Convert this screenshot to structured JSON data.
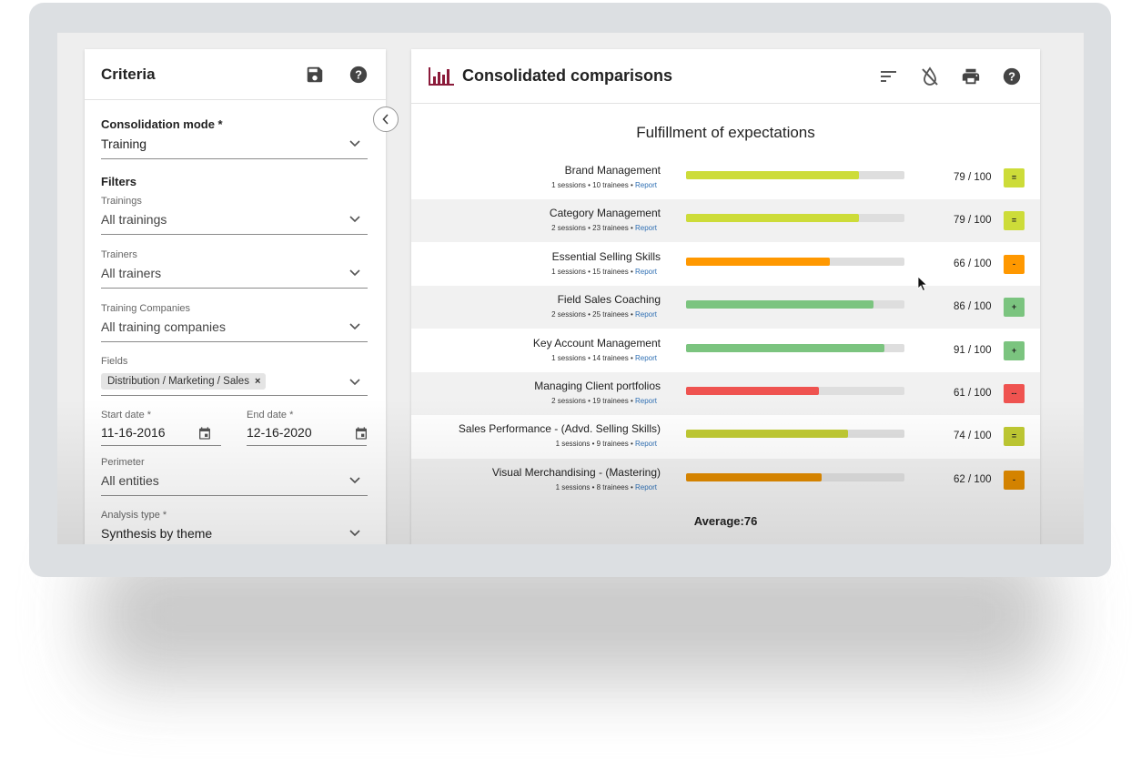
{
  "criteria": {
    "title": "Criteria",
    "save_icon": "save-icon",
    "help_icon": "help-icon",
    "consolidation_mode": {
      "label": "Consolidation mode *",
      "value": "Training"
    },
    "filters_title": "Filters",
    "trainings": {
      "label": "Trainings",
      "value": "All trainings"
    },
    "trainers": {
      "label": "Trainers",
      "value": "All trainers"
    },
    "training_companies": {
      "label": "Training Companies",
      "value": "All training companies"
    },
    "fields": {
      "label": "Fields",
      "chip": "Distribution / Marketing / Sales",
      "chip_remove": "×"
    },
    "start_date": {
      "label": "Start date *",
      "value": "11-16-2016"
    },
    "end_date": {
      "label": "End date *",
      "value": "12-16-2020"
    },
    "perimeter": {
      "label": "Perimeter",
      "value": "All entities"
    },
    "analysis_type": {
      "label": "Analysis type *",
      "value": "Synthesis by theme"
    }
  },
  "comparisons": {
    "title": "Consolidated comparisons",
    "chart_title": "Fulfillment of expectations",
    "average_label": "Average:76",
    "toolbar_icons": [
      "sort-icon",
      "no-color-icon",
      "print-icon",
      "help-icon"
    ],
    "max_score": 100,
    "rows": [
      {
        "name": "Brand Management",
        "meta": "1 sessions • 10 trainees • ",
        "report": "Report",
        "score": 79,
        "score_text": "79 / 100",
        "badge": "=",
        "color": "#cddc39"
      },
      {
        "name": "Category Management",
        "meta": "2 sessions • 23 trainees • ",
        "report": "Report",
        "score": 79,
        "score_text": "79 / 100",
        "badge": "=",
        "color": "#cddc39"
      },
      {
        "name": "Essential Selling Skills",
        "meta": "1 sessions • 15 trainees • ",
        "report": "Report",
        "score": 66,
        "score_text": "66 / 100",
        "badge": "-",
        "color": "#ff9800"
      },
      {
        "name": "Field Sales Coaching",
        "meta": "2 sessions • 25 trainees • ",
        "report": "Report",
        "score": 86,
        "score_text": "86 / 100",
        "badge": "+",
        "color": "#7bc47f"
      },
      {
        "name": "Key Account Management",
        "meta": "1 sessions • 14 trainees • ",
        "report": "Report",
        "score": 91,
        "score_text": "91 / 100",
        "badge": "+",
        "color": "#7bc47f"
      },
      {
        "name": "Managing Client portfolios",
        "meta": "2 sessions • 19 trainees • ",
        "report": "Report",
        "score": 61,
        "score_text": "61 / 100",
        "badge": "--",
        "color": "#ef5350"
      },
      {
        "name": "Sales Performance - (Advd. Selling Skills)",
        "meta": "1 sessions • 9 trainees • ",
        "report": "Report",
        "score": 74,
        "score_text": "74 / 100",
        "badge": "=",
        "color": "#c0ca33"
      },
      {
        "name": "Visual Merchandising - (Mastering)",
        "meta": "1 sessions • 8 trainees • ",
        "report": "Report",
        "score": 62,
        "score_text": "62 / 100",
        "badge": "-",
        "color": "#e08a00"
      }
    ]
  }
}
